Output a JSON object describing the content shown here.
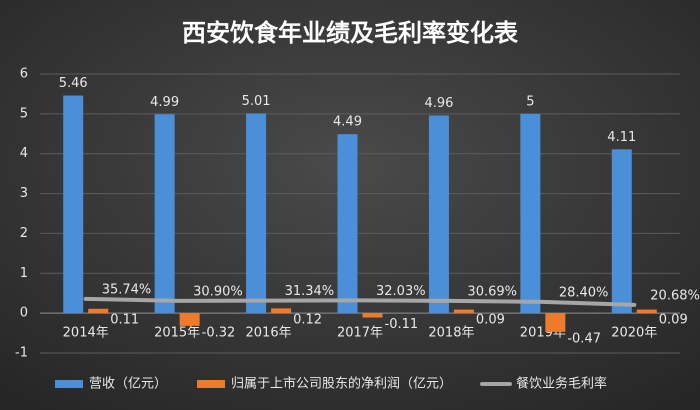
{
  "chart_data": {
    "type": "bar",
    "title": "西安饮食年业绩及毛利率变化表",
    "categories": [
      "2014年",
      "2015年",
      "2016年",
      "2017年",
      "2018年",
      "2019年",
      "2020年"
    ],
    "ylim": [
      -1,
      6
    ],
    "yticks": [
      -1,
      0,
      1,
      2,
      3,
      4,
      5,
      6
    ],
    "grid": true,
    "y2lim": [
      -100,
      600
    ],
    "series": [
      {
        "name": "营收（亿元）",
        "type": "bar",
        "color": "#4a8fd8",
        "values": [
          5.46,
          4.99,
          5.01,
          4.49,
          4.96,
          5,
          4.11
        ]
      },
      {
        "name": "归属于上市公司股东的净利润（亿元）",
        "type": "bar",
        "color": "#ee7a2c",
        "values": [
          0.11,
          -0.32,
          0.12,
          -0.11,
          0.09,
          -0.47,
          0.09
        ]
      },
      {
        "name": "餐饮业务毛利率",
        "type": "line",
        "axis": "y2",
        "color": "#a6a6a6",
        "values": [
          35.74,
          30.9,
          31.34,
          32.03,
          30.69,
          28.4,
          20.68
        ],
        "value_labels": [
          "35.74%",
          "30.90%",
          "31.34%",
          "32.03%",
          "30.69%",
          "28.40%",
          "20.68%"
        ]
      }
    ]
  }
}
